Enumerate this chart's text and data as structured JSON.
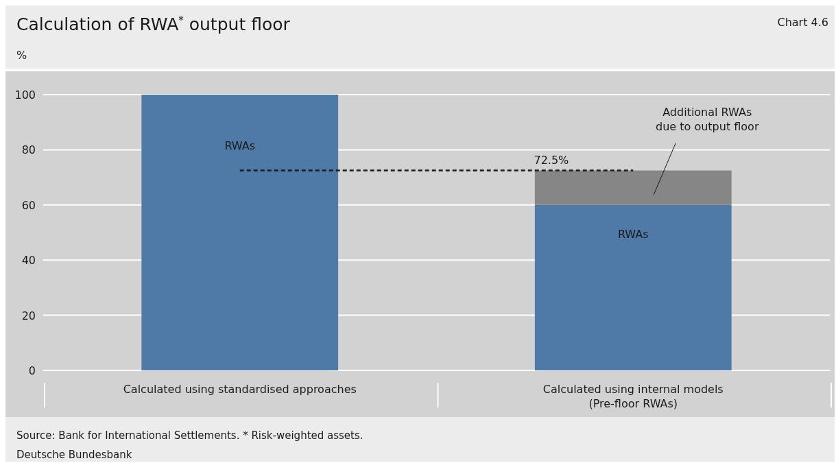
{
  "chart_data": {
    "type": "bar",
    "title": "Calculation of RWA$^{*}$ output floor",
    "ylabel": "%",
    "annotations": [
      "Chart 4.6",
      "Source: Bank for International Settlements. * Risk-weighted assets.",
      "Deutsche Bundesbank"
    ],
    "categories": [
      "Calculated using standardised approaches",
      "Calculated using internal models\n(Pre-floor RWAs)"
    ],
    "stacked": true,
    "series": [
      {
        "name": "RWAs",
        "color": "#4f7aa8",
        "values": [
          100,
          60
        ]
      },
      {
        "name": "Additional RWAs\ndue to output floor",
        "color": "#878686",
        "values": [
          null,
          12.5
        ]
      }
    ],
    "ylim": [
      0,
      100
    ],
    "yticks": [
      0,
      20,
      40,
      60,
      80,
      100
    ],
    "grid": "y",
    "ref_lines": [
      {
        "axis": "y",
        "value": 72.5,
        "label": "72.5%",
        "color": "#1a1a1a",
        "line_style": "dashed"
      }
    ]
  }
}
